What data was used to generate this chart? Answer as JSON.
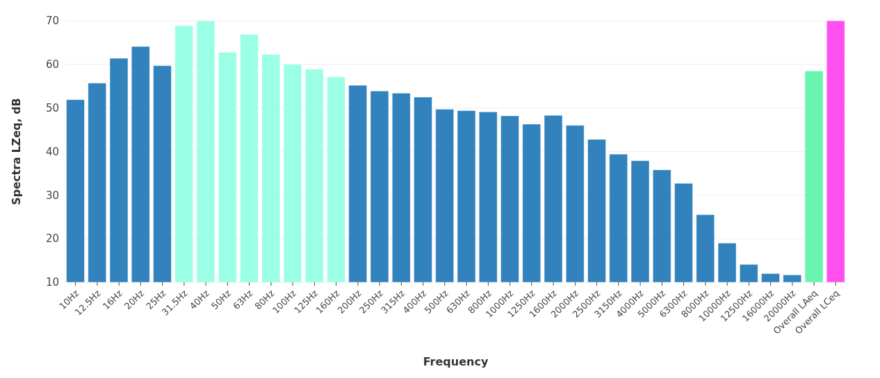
{
  "chart_data": {
    "type": "bar",
    "xlabel": "Frequency",
    "ylabel": "Spectra LZeq, dB",
    "categories": [
      "10Hz",
      "12.5Hz",
      "16Hz",
      "20Hz",
      "25Hz",
      "31.5Hz",
      "40Hz",
      "50Hz",
      "63Hz",
      "80Hz",
      "100Hz",
      "125Hz",
      "160Hz",
      "200Hz",
      "250Hz",
      "315Hz",
      "400Hz",
      "500Hz",
      "630Hz",
      "800Hz",
      "1000Hz",
      "1250Hz",
      "1600Hz",
      "2000Hz",
      "2500Hz",
      "3150Hz",
      "4000Hz",
      "5000Hz",
      "6300Hz",
      "8000Hz",
      "10000Hz",
      "12500Hz",
      "16000Hz",
      "20000Hz",
      "Overall LAeq",
      "Overall LCeq"
    ],
    "values": [
      51.9,
      55.7,
      61.4,
      64.1,
      59.7,
      68.9,
      70,
      62.8,
      66.9,
      62.3,
      60,
      58.9,
      57.1,
      55.2,
      53.9,
      53.4,
      52.5,
      49.7,
      49.4,
      49.1,
      48.2,
      46.3,
      48.3,
      46,
      42.8,
      39.4,
      37.9,
      35.8,
      32.7,
      25.5,
      19,
      14.1,
      12,
      11.7,
      58.5,
      70
    ],
    "colors": [
      "#3182bd",
      "#3182bd",
      "#3182bd",
      "#3182bd",
      "#3182bd",
      "#9bffe6",
      "#9bffe6",
      "#9bffe6",
      "#9bffe6",
      "#9bffe6",
      "#9bffe6",
      "#9bffe6",
      "#9bffe6",
      "#3182bd",
      "#3182bd",
      "#3182bd",
      "#3182bd",
      "#3182bd",
      "#3182bd",
      "#3182bd",
      "#3182bd",
      "#3182bd",
      "#3182bd",
      "#3182bd",
      "#3182bd",
      "#3182bd",
      "#3182bd",
      "#3182bd",
      "#3182bd",
      "#3182bd",
      "#3182bd",
      "#3182bd",
      "#3182bd",
      "#3182bd",
      "#69f5b0",
      "#ff4ff0"
    ],
    "ylim": [
      10,
      70
    ],
    "yticks": [
      10,
      20,
      30,
      40,
      50,
      60,
      70
    ],
    "grid": "y"
  }
}
